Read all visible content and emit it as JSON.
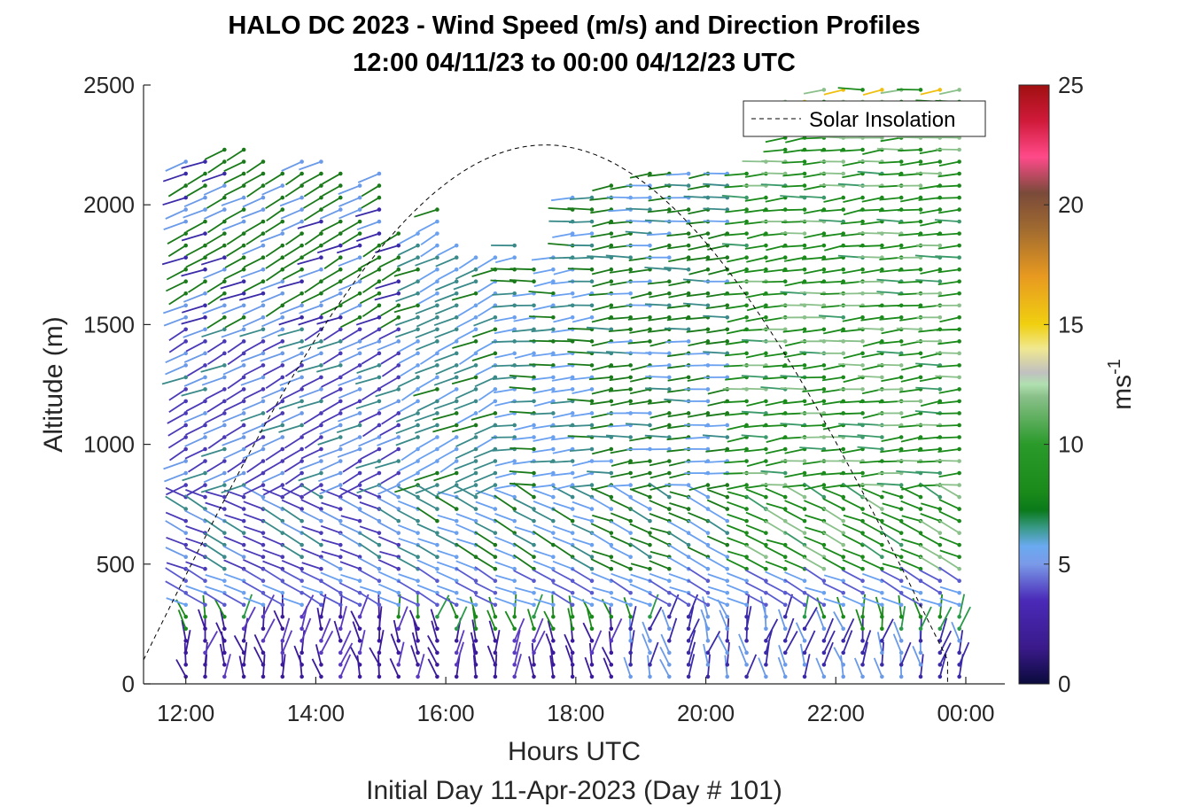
{
  "chart_data": {
    "type": "barb-profile",
    "title": "HALO DC 2023 - Wind Speed (m/s) and Direction Profiles",
    "subtitle": "12:00 04/11/23 to 00:00 04/12/23  UTC",
    "xlabel": "Hours UTC",
    "xlabel2": "Initial Day 11-Apr-2023 (Day # 101)",
    "ylabel": "Altitude (m)",
    "xticks": [
      "12:00",
      "14:00",
      "16:00",
      "18:00",
      "20:00",
      "22:00",
      "00:00"
    ],
    "yticks": [
      "0",
      "500",
      "1000",
      "1500",
      "2000",
      "2500"
    ],
    "xlim": [
      11.35,
      24.6
    ],
    "ylim": [
      0,
      2500
    ],
    "x_start_hour": 12.0,
    "x_end_hour": 23.9,
    "y_range_top": [
      2180,
      2220,
      2250,
      2230,
      2200,
      2150,
      2180,
      2200,
      2130,
      2100,
      2150,
      1920,
      1900,
      2000,
      1850,
      1800,
      1780,
      1860,
      1750,
      1800,
      2050,
      2050,
      2110,
      2120,
      2140,
      2150,
      2140,
      2140,
      2150,
      2150,
      2200,
      2450,
      2470,
      2480,
      2480,
      2490,
      2500,
      2500,
      2500,
      2500,
      2500
    ],
    "colorbar": {
      "label": "ms",
      "label_exponent": "-1",
      "ticks": [
        "0",
        "5",
        "10",
        "15",
        "20",
        "25"
      ],
      "range": [
        0,
        25
      ]
    },
    "legend": {
      "label": "Solar Insolation",
      "position": "top-right"
    },
    "colors": {
      "axis": "#262626",
      "text": "#000000"
    }
  }
}
